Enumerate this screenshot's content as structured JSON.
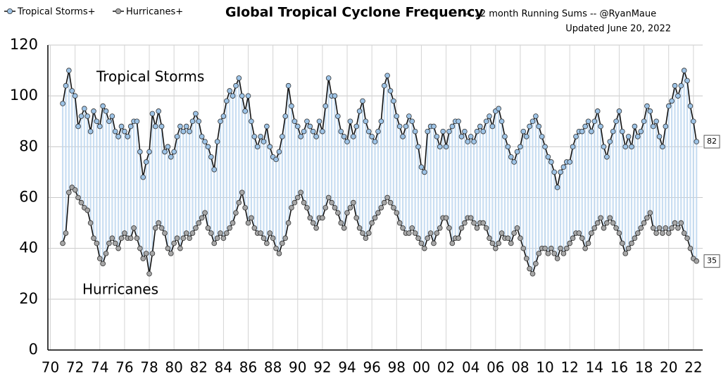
{
  "chart_data": {
    "type": "line",
    "title": "Global Tropical Cyclone Frequency",
    "subtitle": "-- 12 month Running Sums -- @RyanMaue",
    "updated": "Updated June 20, 2022",
    "annotations": [
      "Tropical Storms",
      "Hurricanes"
    ],
    "xlim": [
      1969.8,
      2022.75
    ],
    "xticks": [
      {
        "value": 1970,
        "label": "70"
      },
      {
        "value": 1972,
        "label": "72"
      },
      {
        "value": 1974,
        "label": "74"
      },
      {
        "value": 1976,
        "label": "76"
      },
      {
        "value": 1978,
        "label": "78"
      },
      {
        "value": 1980,
        "label": "80"
      },
      {
        "value": 1982,
        "label": "82"
      },
      {
        "value": 1984,
        "label": "84"
      },
      {
        "value": 1986,
        "label": "86"
      },
      {
        "value": 1988,
        "label": "88"
      },
      {
        "value": 1990,
        "label": "90"
      },
      {
        "value": 1992,
        "label": "92"
      },
      {
        "value": 1994,
        "label": "94"
      },
      {
        "value": 1996,
        "label": "96"
      },
      {
        "value": 1998,
        "label": "98"
      },
      {
        "value": 2000,
        "label": "00"
      },
      {
        "value": 2002,
        "label": "02"
      },
      {
        "value": 2004,
        "label": "04"
      },
      {
        "value": 2006,
        "label": "06"
      },
      {
        "value": 2008,
        "label": "08"
      },
      {
        "value": 2010,
        "label": "10"
      },
      {
        "value": 2012,
        "label": "12"
      },
      {
        "value": 2014,
        "label": "14"
      },
      {
        "value": 2016,
        "label": "16"
      },
      {
        "value": 2018,
        "label": "18"
      },
      {
        "value": 2020,
        "label": "20"
      },
      {
        "value": 2022,
        "label": "22"
      }
    ],
    "ylim": [
      0,
      120
    ],
    "yticks": [
      0,
      20,
      40,
      60,
      80,
      100,
      120
    ],
    "grid": true,
    "x": [
      1971,
      1971.25,
      1971.5,
      1971.75,
      1972,
      1972.25,
      1972.5,
      1972.75,
      1973,
      1973.25,
      1973.5,
      1973.75,
      1974,
      1974.25,
      1974.5,
      1974.75,
      1975,
      1975.25,
      1975.5,
      1975.75,
      1976,
      1976.25,
      1976.5,
      1976.75,
      1977,
      1977.25,
      1977.5,
      1977.75,
      1978,
      1978.25,
      1978.5,
      1978.75,
      1979,
      1979.25,
      1979.5,
      1979.75,
      1980,
      1980.25,
      1980.5,
      1980.75,
      1981,
      1981.25,
      1981.5,
      1981.75,
      1982,
      1982.25,
      1982.5,
      1982.75,
      1983,
      1983.25,
      1983.5,
      1983.75,
      1984,
      1984.25,
      1984.5,
      1984.75,
      1985,
      1985.25,
      1985.5,
      1985.75,
      1986,
      1986.25,
      1986.5,
      1986.75,
      1987,
      1987.25,
      1987.5,
      1987.75,
      1988,
      1988.25,
      1988.5,
      1988.75,
      1989,
      1989.25,
      1989.5,
      1989.75,
      1990,
      1990.25,
      1990.5,
      1990.75,
      1991,
      1991.25,
      1991.5,
      1991.75,
      1992,
      1992.25,
      1992.5,
      1992.75,
      1993,
      1993.25,
      1993.5,
      1993.75,
      1994,
      1994.25,
      1994.5,
      1994.75,
      1995,
      1995.25,
      1995.5,
      1995.75,
      1996,
      1996.25,
      1996.5,
      1996.75,
      1997,
      1997.25,
      1997.5,
      1997.75,
      1998,
      1998.25,
      1998.5,
      1998.75,
      1999,
      1999.25,
      1999.5,
      1999.75,
      2000,
      2000.25,
      2000.5,
      2000.75,
      2001,
      2001.25,
      2001.5,
      2001.75,
      2002,
      2002.25,
      2002.5,
      2002.75,
      2003,
      2003.25,
      2003.5,
      2003.75,
      2004,
      2004.25,
      2004.5,
      2004.75,
      2005,
      2005.25,
      2005.5,
      2005.75,
      2006,
      2006.25,
      2006.5,
      2006.75,
      2007,
      2007.25,
      2007.5,
      2007.75,
      2008,
      2008.25,
      2008.5,
      2008.75,
      2009,
      2009.25,
      2009.5,
      2009.75,
      2010,
      2010.25,
      2010.5,
      2010.75,
      2011,
      2011.25,
      2011.5,
      2011.75,
      2012,
      2012.25,
      2012.5,
      2012.75,
      2013,
      2013.25,
      2013.5,
      2013.75,
      2014,
      2014.25,
      2014.5,
      2014.75,
      2015,
      2015.25,
      2015.5,
      2015.75,
      2016,
      2016.25,
      2016.5,
      2016.75,
      2017,
      2017.25,
      2017.5,
      2017.75,
      2018,
      2018.25,
      2018.5,
      2018.75,
      2019,
      2019.25,
      2019.5,
      2019.75,
      2020,
      2020.25,
      2020.5,
      2020.75,
      2021,
      2021.25,
      2021.5,
      2021.75,
      2022,
      2022.25
    ],
    "series": [
      {
        "name": "Tropical Storms+",
        "color": "#9dc3e6",
        "values": [
          97,
          104,
          110,
          102,
          100,
          88,
          92,
          95,
          92,
          86,
          94,
          90,
          88,
          96,
          94,
          90,
          92,
          86,
          84,
          88,
          86,
          84,
          88,
          90,
          90,
          78,
          68,
          74,
          78,
          93,
          88,
          94,
          88,
          78,
          80,
          76,
          78,
          84,
          88,
          86,
          88,
          86,
          90,
          93,
          90,
          84,
          82,
          80,
          76,
          71,
          82,
          90,
          92,
          98,
          102,
          100,
          104,
          107,
          100,
          94,
          100,
          90,
          84,
          80,
          84,
          82,
          88,
          80,
          76,
          75,
          78,
          84,
          92,
          104,
          96,
          90,
          88,
          84,
          86,
          90,
          88,
          86,
          84,
          90,
          86,
          96,
          107,
          100,
          100,
          92,
          86,
          84,
          82,
          90,
          84,
          88,
          94,
          98,
          90,
          86,
          84,
          82,
          86,
          90,
          104,
          108,
          102,
          98,
          92,
          88,
          84,
          88,
          92,
          90,
          86,
          80,
          72,
          70,
          86,
          88,
          88,
          84,
          80,
          86,
          80,
          86,
          88,
          90,
          90,
          84,
          86,
          82,
          84,
          82,
          86,
          88,
          86,
          90,
          92,
          88,
          94,
          95,
          90,
          84,
          80,
          76,
          74,
          78,
          80,
          86,
          84,
          88,
          90,
          92,
          88,
          84,
          80,
          76,
          74,
          70,
          64,
          70,
          72,
          74,
          74,
          80,
          84,
          86,
          86,
          88,
          90,
          86,
          90,
          94,
          88,
          80,
          76,
          82,
          86,
          90,
          94,
          86,
          80,
          84,
          80,
          88,
          84,
          86,
          90,
          96,
          94,
          88,
          90,
          84,
          80,
          88,
          96,
          98,
          104,
          100,
          104,
          110,
          106,
          96,
          90,
          82
        ]
      },
      {
        "name": "Hurricanes+",
        "color": "#a6a6a6",
        "values": [
          42,
          46,
          62,
          64,
          63,
          60,
          58,
          56,
          55,
          50,
          44,
          42,
          36,
          34,
          38,
          42,
          44,
          42,
          40,
          44,
          46,
          44,
          44,
          48,
          44,
          40,
          36,
          38,
          30,
          38,
          48,
          50,
          48,
          46,
          40,
          38,
          42,
          44,
          40,
          44,
          46,
          44,
          46,
          48,
          50,
          52,
          54,
          48,
          46,
          42,
          44,
          46,
          44,
          46,
          48,
          50,
          54,
          58,
          62,
          56,
          50,
          52,
          48,
          46,
          46,
          44,
          42,
          46,
          44,
          40,
          38,
          42,
          44,
          50,
          56,
          58,
          60,
          62,
          58,
          56,
          52,
          50,
          48,
          52,
          52,
          56,
          60,
          58,
          56,
          54,
          50,
          48,
          54,
          56,
          58,
          52,
          48,
          46,
          44,
          46,
          50,
          52,
          54,
          56,
          58,
          60,
          58,
          56,
          54,
          50,
          48,
          46,
          46,
          48,
          46,
          44,
          42,
          40,
          44,
          46,
          42,
          46,
          48,
          52,
          52,
          48,
          42,
          44,
          44,
          48,
          50,
          52,
          52,
          50,
          48,
          50,
          50,
          48,
          44,
          42,
          40,
          42,
          46,
          44,
          44,
          42,
          46,
          48,
          44,
          40,
          36,
          32,
          30,
          34,
          38,
          40,
          40,
          38,
          40,
          38,
          36,
          40,
          38,
          40,
          42,
          44,
          46,
          46,
          44,
          40,
          42,
          46,
          48,
          50,
          52,
          48,
          50,
          52,
          50,
          48,
          46,
          42,
          38,
          40,
          42,
          44,
          46,
          48,
          50,
          52,
          54,
          48,
          46,
          48,
          46,
          48,
          46,
          48,
          50,
          48,
          50,
          46,
          44,
          40,
          36,
          35
        ]
      }
    ]
  }
}
